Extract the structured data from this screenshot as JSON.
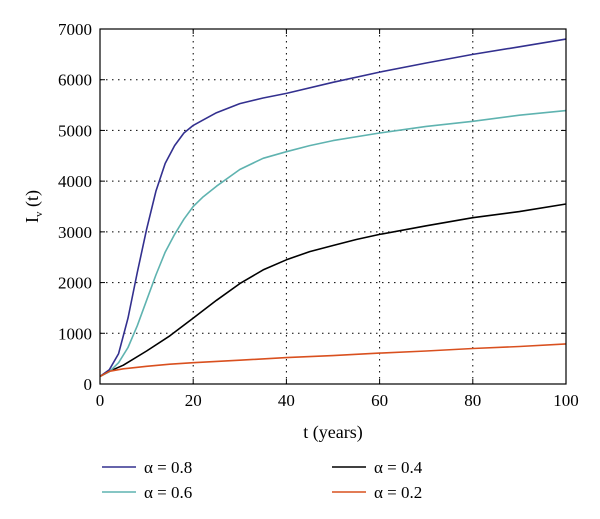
{
  "chart_data": {
    "type": "line",
    "xlabel": "t (years)",
    "ylabel_main": "I",
    "ylabel_sub": "v",
    "ylabel_suffix": " (t)",
    "xlim": [
      0,
      100
    ],
    "ylim": [
      0,
      7000
    ],
    "x_ticks": [
      0,
      20,
      40,
      60,
      80,
      100
    ],
    "y_ticks": [
      0,
      1000,
      2000,
      3000,
      4000,
      5000,
      6000,
      7000
    ],
    "grid": true,
    "legend_placement": "bottom",
    "series": [
      {
        "name": "α = 0.8",
        "color": "#33308f",
        "x": [
          0,
          2,
          4,
          6,
          8,
          10,
          12,
          14,
          16,
          18,
          20,
          22,
          25,
          30,
          35,
          40,
          50,
          60,
          70,
          80,
          90,
          100
        ],
        "y": [
          150,
          280,
          600,
          1300,
          2200,
          3050,
          3800,
          4350,
          4700,
          4950,
          5100,
          5200,
          5350,
          5530,
          5640,
          5730,
          5950,
          6150,
          6330,
          6500,
          6650,
          6800
        ]
      },
      {
        "name": "α = 0.4",
        "color": "#000000",
        "x": [
          0,
          2,
          5,
          10,
          15,
          20,
          25,
          30,
          35,
          40,
          45,
          50,
          55,
          60,
          70,
          80,
          90,
          100
        ],
        "y": [
          150,
          250,
          370,
          650,
          950,
          1300,
          1650,
          1980,
          2250,
          2450,
          2610,
          2730,
          2850,
          2950,
          3120,
          3280,
          3400,
          3550
        ]
      },
      {
        "name": "α = 0.6",
        "color": "#5fb3b0",
        "x": [
          0,
          2,
          4,
          6,
          8,
          10,
          12,
          14,
          16,
          18,
          20,
          22,
          25,
          30,
          35,
          40,
          45,
          50,
          60,
          70,
          80,
          90,
          100
        ],
        "y": [
          150,
          240,
          420,
          720,
          1150,
          1650,
          2150,
          2600,
          2950,
          3250,
          3500,
          3680,
          3900,
          4230,
          4450,
          4580,
          4700,
          4800,
          4950,
          5080,
          5180,
          5300,
          5390
        ]
      },
      {
        "name": "α = 0.2",
        "color": "#d9501f",
        "x": [
          0,
          2,
          5,
          10,
          15,
          20,
          30,
          40,
          50,
          60,
          70,
          80,
          90,
          100
        ],
        "y": [
          150,
          250,
          300,
          350,
          390,
          420,
          470,
          520,
          560,
          610,
          650,
          700,
          740,
          790
        ]
      }
    ]
  }
}
